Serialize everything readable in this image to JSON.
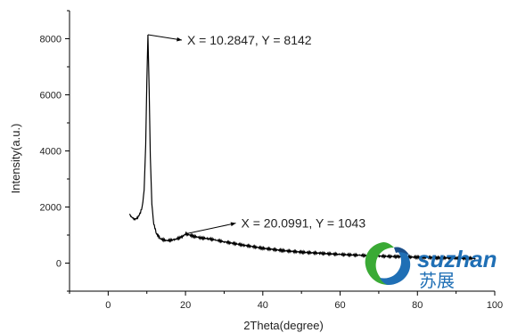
{
  "chart_data": {
    "type": "line",
    "xlabel": "2Theta(degree)",
    "ylabel": "Intensity(a.u.)",
    "xlim": [
      -10,
      100
    ],
    "ylim": [
      -1000,
      9000
    ],
    "x_ticks": [
      0,
      20,
      40,
      60,
      80,
      100
    ],
    "y_ticks": [
      0,
      2000,
      4000,
      6000,
      8000
    ],
    "grid": false,
    "series": [
      {
        "color": "#000000",
        "points": [
          [
            5.5,
            1750
          ],
          [
            6.0,
            1650
          ],
          [
            6.8,
            1560
          ],
          [
            7.5,
            1600
          ],
          [
            8.2,
            1750
          ],
          [
            8.8,
            2000
          ],
          [
            9.3,
            2600
          ],
          [
            9.7,
            4200
          ],
          [
            10.0,
            6500
          ],
          [
            10.28,
            8142
          ],
          [
            10.6,
            6200
          ],
          [
            10.9,
            3800
          ],
          [
            11.3,
            2100
          ],
          [
            11.8,
            1400
          ],
          [
            12.5,
            1050
          ],
          [
            13.5,
            870
          ],
          [
            15,
            800
          ],
          [
            17,
            830
          ],
          [
            19,
            930
          ],
          [
            20.1,
            1043
          ],
          [
            22,
            960
          ],
          [
            24,
            900
          ],
          [
            26,
            870
          ],
          [
            28,
            820
          ],
          [
            30,
            760
          ],
          [
            35,
            640
          ],
          [
            40,
            530
          ],
          [
            45,
            450
          ],
          [
            50,
            390
          ],
          [
            55,
            350
          ],
          [
            60,
            310
          ],
          [
            65,
            280
          ],
          [
            70,
            250
          ],
          [
            75,
            230
          ],
          [
            80,
            210
          ],
          [
            85,
            190
          ],
          [
            90,
            180
          ],
          [
            95,
            170
          ]
        ]
      }
    ],
    "annotations": [
      {
        "x": 10.2847,
        "y": 8142,
        "label": "X = 10.2847, Y = 8142"
      },
      {
        "x": 20.0991,
        "y": 1043,
        "label": "X = 20.0991, Y = 1043"
      }
    ]
  },
  "watermark": {
    "word": "suzhan",
    "chinese": "苏展",
    "colors": {
      "green": "#3aaa35",
      "blue": "#1f6fb5",
      "dark": "#1a4f8a"
    }
  }
}
